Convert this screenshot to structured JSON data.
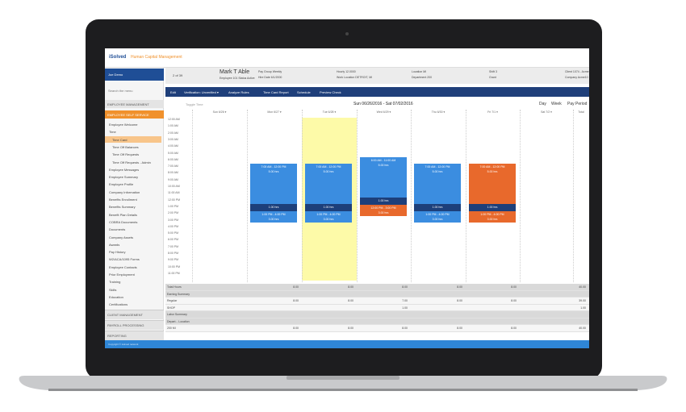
{
  "header": {
    "brand": "iSolved",
    "product": "Human Capital Management"
  },
  "user": {
    "name": "Joe Demo"
  },
  "search": "Search the menu",
  "sidebar": {
    "sections_top": [
      "EMPLOYEE MANAGEMENT",
      "EMPLOYEE SELF SERVICE"
    ],
    "items": [
      "Employee Welcome",
      "Time",
      "Time Card",
      "Time Off Balances",
      "Time Off Requests",
      "Time Off Requests - Admin",
      "Employee Messages",
      "Employee Summary",
      "Employee Profile",
      "Company Information",
      "Benefits Enrollment",
      "Benefits Summary",
      "Benefit Plan Details",
      "COBRA Documents",
      "Documents",
      "Company Assets",
      "Awards",
      "Pay History",
      "W2/ACA/1095 Forms",
      "Employee Contacts",
      "Prior Employment",
      "Training",
      "Skills",
      "Education",
      "Certifications"
    ],
    "sections_bottom": [
      "CLIENT MANAGEMENT",
      "PAYROLL PROCESSING",
      "REPORTING"
    ]
  },
  "employee": {
    "pager": "2 of 39",
    "name": "Mark T Able",
    "id_line": "Employee 101  Status Active",
    "fields": [
      "Pay Group Weekly",
      "Hire Date 6/1/2000",
      "Hourly 12.0000",
      "Work Location DETROIT, MI",
      "Location MI",
      "Department 200",
      "Shift 3",
      "Grant",
      "Client 1074 - Acme",
      "Company Acme10"
    ]
  },
  "toolbar": [
    "Edit",
    "Verification: Unverified ▾",
    "Analyze Rules",
    "Time Card Report",
    "Schedule",
    "Preview Check"
  ],
  "calendar": {
    "toggle": "Toggle Time",
    "range": "Sun 06/26/2016 - Sat 07/02/2016",
    "views": [
      "Day",
      "Week",
      "Pay Period"
    ],
    "columns": [
      "Sun 6/26 ▾",
      "Mon 6/27 ▾",
      "Tue 6/28 ▾",
      "Wed 6/29 ▾",
      "Thu 6/30 ▾",
      "Fri 7/1 ▾",
      "Sat 7/2 ▾",
      "Total"
    ],
    "times": [
      "12:00 AM",
      "1:00 AM",
      "2:00 AM",
      "3:00 AM",
      "4:00 AM",
      "5:00 AM",
      "6:00 AM",
      "7:00 AM",
      "8:00 AM",
      "9:00 AM",
      "10:00 AM",
      "11:00 AM",
      "12:00 PM",
      "1:00 PM",
      "2:00 PM",
      "3:00 PM",
      "4:00 PM",
      "5:00 PM",
      "6:00 PM",
      "7:00 PM",
      "8:00 PM",
      "9:00 PM",
      "10:00 PM",
      "11:00 PM"
    ],
    "days": [
      {
        "segments": []
      },
      {
        "segments": [
          {
            "time": "7:00 AM - 12:00 PM",
            "hours": "5.00 hrs",
            "color": "#3b8de0"
          },
          {
            "hours": "1.00 hrs",
            "color": "#1d3f7a"
          },
          {
            "time": "1:00 PM - 4:00 PM",
            "hours": "3.00 hrs",
            "color": "#3b8de0"
          }
        ]
      },
      {
        "segments": [
          {
            "time": "7:00 AM - 12:00 PM",
            "hours": "5.00 hrs",
            "color": "#3b8de0"
          },
          {
            "hours": "1.00 hrs",
            "color": "#1d3f7a"
          },
          {
            "time": "1:00 PM - 4:00 PM",
            "hours": "3.00 hrs",
            "color": "#3b8de0"
          }
        ]
      },
      {
        "segments": [
          {
            "time": "6:00 AM - 11:00 AM",
            "hours": "5.00 hrs",
            "color": "#3b8de0"
          },
          {
            "hours": "1.00 hrs",
            "color": "#1d3f7a"
          },
          {
            "time": "12:00 PM - 3:00 PM",
            "hours": "3.00 hrs",
            "color": "#e8692c"
          }
        ]
      },
      {
        "segments": [
          {
            "time": "7:00 AM - 12:00 PM",
            "hours": "5.00 hrs",
            "color": "#3b8de0"
          },
          {
            "hours": "1.00 hrs",
            "color": "#1d3f7a"
          },
          {
            "time": "1:00 PM - 4:00 PM",
            "hours": "3.00 hrs",
            "color": "#3b8de0"
          }
        ]
      },
      {
        "segments": [
          {
            "time": "7:00 AM - 12:00 PM",
            "hours": "5.00 hrs",
            "color": "#e8692c"
          },
          {
            "hours": "1.00 hrs",
            "color": "#1d3f7a"
          },
          {
            "time": "1:00 PM - 4:00 PM",
            "hours": "3.00 hrs",
            "color": "#e8692c"
          }
        ]
      },
      {
        "segments": []
      }
    ]
  },
  "summary": {
    "rows": [
      {
        "label": "Total Hours",
        "values": [
          null,
          "8.00",
          "8.00",
          "8.00",
          "8.00",
          "8.00",
          null,
          "40.00"
        ]
      },
      {
        "label": "Earning Summary",
        "values": [
          null,
          null,
          null,
          null,
          null,
          null,
          null,
          null
        ]
      },
      {
        "label": "Regular",
        "values": [
          null,
          "8.00",
          "8.00",
          "7.00",
          "8.00",
          "8.00",
          null,
          "39.00"
        ]
      },
      {
        "label": "SHOP",
        "values": [
          null,
          null,
          null,
          "1.00",
          null,
          null,
          null,
          "1.00"
        ]
      },
      {
        "label": "Labor Summary",
        "values": [
          null,
          null,
          null,
          null,
          null,
          null,
          null,
          null
        ]
      },
      {
        "label": "Depart...  Location",
        "values": [
          null,
          null,
          null,
          null,
          null,
          null,
          null,
          null
        ]
      },
      {
        "label": "200    MI",
        "values": [
          null,
          "8.00",
          "8.00",
          "8.00",
          "8.00",
          "8.00",
          null,
          "40.00"
        ]
      }
    ]
  },
  "footer": "Copyright © isolved network"
}
